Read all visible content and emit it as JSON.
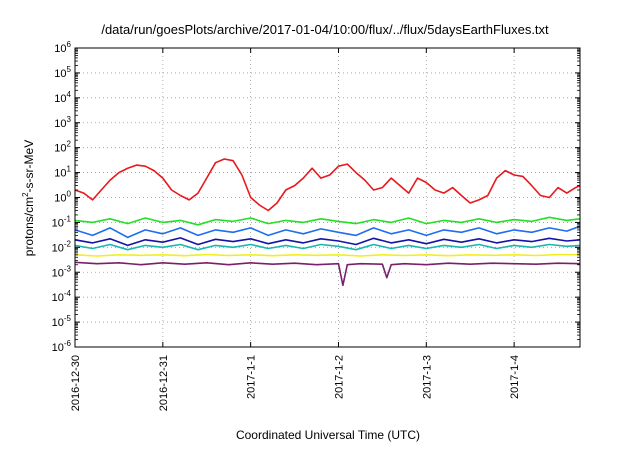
{
  "chart_data": {
    "type": "line",
    "title": "/data/run/goesPlots/archive/2017-01-04/10:00/flux/../flux/5daysEarthFluxes.txt",
    "xlabel": "Coordinated Universal Time (UTC)",
    "ylabel_main": "protons/cm",
    "ylabel_sup": "2",
    "ylabel_tail": "-s-sr-MeV",
    "y_scale": "log",
    "ylim": [
      1e-06,
      1000000.0
    ],
    "yticks": [
      {
        "base": "10",
        "exp": "-6",
        "value": -6
      },
      {
        "base": "10",
        "exp": "-5",
        "value": -5
      },
      {
        "base": "10",
        "exp": "-4",
        "value": -4
      },
      {
        "base": "10",
        "exp": "-3",
        "value": -3
      },
      {
        "base": "10",
        "exp": "-2",
        "value": -2
      },
      {
        "base": "10",
        "exp": "-1",
        "value": -1
      },
      {
        "base": "10",
        "exp": "0",
        "value": 0
      },
      {
        "base": "10",
        "exp": "1",
        "value": 1
      },
      {
        "base": "10",
        "exp": "2",
        "value": 2
      },
      {
        "base": "10",
        "exp": "3",
        "value": 3
      },
      {
        "base": "10",
        "exp": "4",
        "value": 4
      },
      {
        "base": "10",
        "exp": "5",
        "value": 5
      },
      {
        "base": "10",
        "exp": "6",
        "value": 6
      }
    ],
    "xlim": [
      0,
      5.75
    ],
    "x_unit": "days since 2016-12-30 00:00 UTC",
    "xticks": [
      {
        "label": "2016-12-30",
        "value": 0
      },
      {
        "label": "2016-12-31",
        "value": 1
      },
      {
        "label": "2017-1-1",
        "value": 2
      },
      {
        "label": "2017-1-2",
        "value": 3
      },
      {
        "label": "2017-1-3",
        "value": 4
      },
      {
        "label": "2017-1-4",
        "value": 5
      }
    ],
    "grid": true,
    "grid_style": "dotted",
    "series": [
      {
        "color": "#e8181c",
        "x": [
          0,
          0.1,
          0.2,
          0.3,
          0.4,
          0.5,
          0.6,
          0.7,
          0.8,
          0.9,
          1.0,
          1.1,
          1.2,
          1.3,
          1.4,
          1.5,
          1.6,
          1.7,
          1.8,
          1.9,
          2.0,
          2.1,
          2.2,
          2.3,
          2.4,
          2.5,
          2.6,
          2.7,
          2.8,
          2.9,
          3.0,
          3.1,
          3.2,
          3.3,
          3.4,
          3.5,
          3.6,
          3.7,
          3.8,
          3.9,
          4.0,
          4.1,
          4.2,
          4.3,
          4.4,
          4.5,
          4.6,
          4.7,
          4.8,
          4.9,
          5.0,
          5.1,
          5.2,
          5.3,
          5.4,
          5.5,
          5.6,
          5.7,
          5.75
        ],
        "values": [
          2,
          1.5,
          0.8,
          2,
          5,
          10,
          15,
          20,
          18,
          12,
          6,
          2,
          1.2,
          0.8,
          1.5,
          6,
          25,
          35,
          30,
          8,
          1,
          0.5,
          0.3,
          0.6,
          2,
          3,
          6,
          15,
          6,
          8,
          18,
          22,
          10,
          5,
          2,
          2.5,
          6,
          3,
          1.5,
          6,
          4,
          2,
          1.5,
          2.5,
          1.2,
          0.6,
          0.8,
          1.2,
          6,
          12,
          8,
          7,
          3,
          1.2,
          1,
          2.5,
          1.5,
          2.5,
          3
        ]
      },
      {
        "color": "#22e022",
        "x": [
          0,
          0.2,
          0.4,
          0.6,
          0.8,
          1.0,
          1.2,
          1.4,
          1.6,
          1.8,
          2.0,
          2.2,
          2.4,
          2.6,
          2.8,
          3.0,
          3.2,
          3.4,
          3.6,
          3.8,
          4.0,
          4.2,
          4.4,
          4.6,
          4.8,
          5.0,
          5.2,
          5.4,
          5.6,
          5.75
        ],
        "values": [
          0.12,
          0.1,
          0.14,
          0.09,
          0.15,
          0.1,
          0.12,
          0.08,
          0.13,
          0.11,
          0.15,
          0.09,
          0.12,
          0.1,
          0.14,
          0.11,
          0.09,
          0.13,
          0.1,
          0.15,
          0.09,
          0.12,
          0.1,
          0.14,
          0.1,
          0.13,
          0.11,
          0.16,
          0.12,
          0.14
        ]
      },
      {
        "color": "#1e6ef0",
        "x": [
          0,
          0.2,
          0.4,
          0.6,
          0.8,
          1.0,
          1.2,
          1.4,
          1.6,
          1.8,
          2.0,
          2.2,
          2.4,
          2.6,
          2.8,
          3.0,
          3.2,
          3.4,
          3.6,
          3.8,
          4.0,
          4.2,
          4.4,
          4.6,
          4.8,
          5.0,
          5.2,
          5.4,
          5.6,
          5.75
        ],
        "values": [
          0.05,
          0.03,
          0.06,
          0.025,
          0.05,
          0.035,
          0.06,
          0.03,
          0.05,
          0.04,
          0.06,
          0.03,
          0.05,
          0.035,
          0.055,
          0.04,
          0.03,
          0.06,
          0.035,
          0.05,
          0.03,
          0.05,
          0.04,
          0.06,
          0.035,
          0.05,
          0.04,
          0.06,
          0.045,
          0.07
        ]
      },
      {
        "color": "#1414a8",
        "x": [
          0,
          0.2,
          0.4,
          0.6,
          0.8,
          1.0,
          1.2,
          1.4,
          1.6,
          1.8,
          2.0,
          2.2,
          2.4,
          2.6,
          2.8,
          3.0,
          3.2,
          3.4,
          3.6,
          3.8,
          4.0,
          4.2,
          4.4,
          4.6,
          4.8,
          5.0,
          5.2,
          5.4,
          5.6,
          5.75
        ],
        "values": [
          0.02,
          0.015,
          0.022,
          0.012,
          0.02,
          0.016,
          0.024,
          0.013,
          0.021,
          0.017,
          0.022,
          0.014,
          0.02,
          0.015,
          0.022,
          0.018,
          0.013,
          0.023,
          0.015,
          0.02,
          0.014,
          0.021,
          0.016,
          0.022,
          0.015,
          0.02,
          0.017,
          0.023,
          0.018,
          0.02
        ]
      },
      {
        "color": "#18b8b0",
        "x": [
          0,
          0.2,
          0.4,
          0.6,
          0.8,
          1.0,
          1.2,
          1.4,
          1.6,
          1.8,
          2.0,
          2.2,
          2.4,
          2.6,
          2.8,
          3.0,
          3.2,
          3.4,
          3.6,
          3.8,
          4.0,
          4.2,
          4.4,
          4.6,
          4.8,
          5.0,
          5.2,
          5.4,
          5.6,
          5.75
        ],
        "values": [
          0.012,
          0.009,
          0.013,
          0.008,
          0.012,
          0.01,
          0.013,
          0.008,
          0.012,
          0.01,
          0.013,
          0.009,
          0.012,
          0.009,
          0.013,
          0.011,
          0.008,
          0.013,
          0.009,
          0.012,
          0.009,
          0.012,
          0.01,
          0.013,
          0.009,
          0.012,
          0.01,
          0.013,
          0.011,
          0.012
        ]
      },
      {
        "color": "#f0f020",
        "x": [
          0,
          0.25,
          0.5,
          0.75,
          1.0,
          1.25,
          1.5,
          1.75,
          2.0,
          2.25,
          2.5,
          2.75,
          3.0,
          3.25,
          3.5,
          3.75,
          4.0,
          4.25,
          4.5,
          4.75,
          5.0,
          5.25,
          5.5,
          5.75
        ],
        "values": [
          0.005,
          0.0045,
          0.005,
          0.0048,
          0.005,
          0.0046,
          0.0051,
          0.0047,
          0.005,
          0.0046,
          0.005,
          0.0048,
          0.005,
          0.0045,
          0.005,
          0.0047,
          0.005,
          0.0046,
          0.005,
          0.0048,
          0.005,
          0.0047,
          0.0051,
          0.005
        ]
      },
      {
        "color": "#7a1f6e",
        "x": [
          0,
          0.25,
          0.5,
          0.75,
          1.0,
          1.25,
          1.5,
          1.75,
          2.0,
          2.25,
          2.5,
          2.75,
          3.0,
          3.05,
          3.1,
          3.25,
          3.5,
          3.55,
          3.6,
          3.75,
          4.0,
          4.25,
          4.5,
          4.75,
          5.0,
          5.25,
          5.5,
          5.75
        ],
        "values": [
          0.0025,
          0.0022,
          0.0024,
          0.002,
          0.0024,
          0.0021,
          0.0024,
          0.002,
          0.0024,
          0.0021,
          0.0023,
          0.002,
          0.0022,
          0.0003,
          0.002,
          0.0022,
          0.0021,
          0.0006,
          0.002,
          0.0022,
          0.002,
          0.0023,
          0.0021,
          0.0023,
          0.0022,
          0.0021,
          0.0023,
          0.0022
        ]
      }
    ]
  }
}
